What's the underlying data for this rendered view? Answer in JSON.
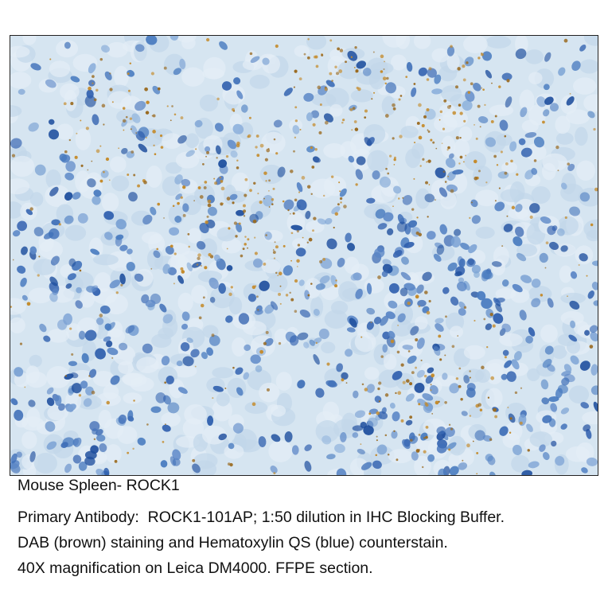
{
  "caption": [
    "Mouse Spleen- ROCK1",
    "Primary Antibody:  ROCK1-101AP; 1:50 dilution in IHC Blocking Buffer.",
    "DAB (brown) staining and Hematoxylin QS (blue) counterstain.",
    "40X magnification on Leica DM4000. FFPE section."
  ]
}
